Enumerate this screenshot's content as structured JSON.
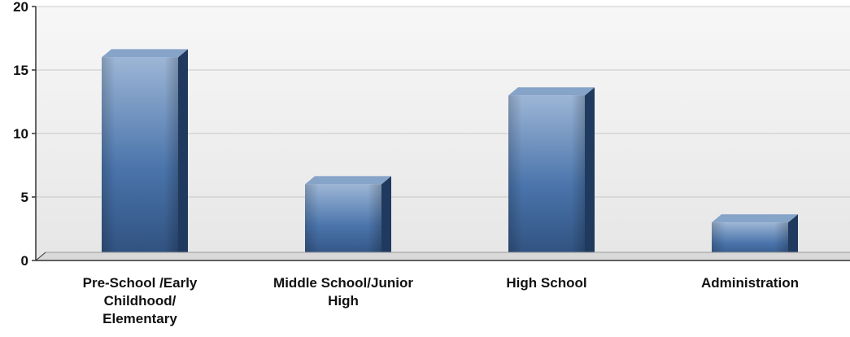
{
  "chart_data": {
    "type": "bar",
    "title": "",
    "xlabel": "",
    "ylabel": "",
    "categories": [
      [
        "Pre-School /Early",
        "Childhood/",
        "Elementary"
      ],
      [
        "Middle School/Junior",
        "High"
      ],
      [
        "High School"
      ],
      [
        "Administration"
      ]
    ],
    "values": [
      16,
      6,
      13,
      3
    ],
    "ylim": [
      0,
      20
    ],
    "yticks": [
      "0",
      "5",
      "10",
      "15",
      "20"
    ],
    "grid": true,
    "legend": "none",
    "bar_style": "3d",
    "colors": {
      "bar_top": "#9db6d6",
      "bar_mid": "#4a74ab",
      "bar_bottom": "#2e4f7c",
      "bar_side": "#1f3a5e",
      "bar_cap": "#86a3c8",
      "plot_bg_top": "#f7f7f7",
      "plot_bg_bottom": "#e6e6e6",
      "gridline": "#c8c8c8",
      "axis": "#333333"
    }
  }
}
